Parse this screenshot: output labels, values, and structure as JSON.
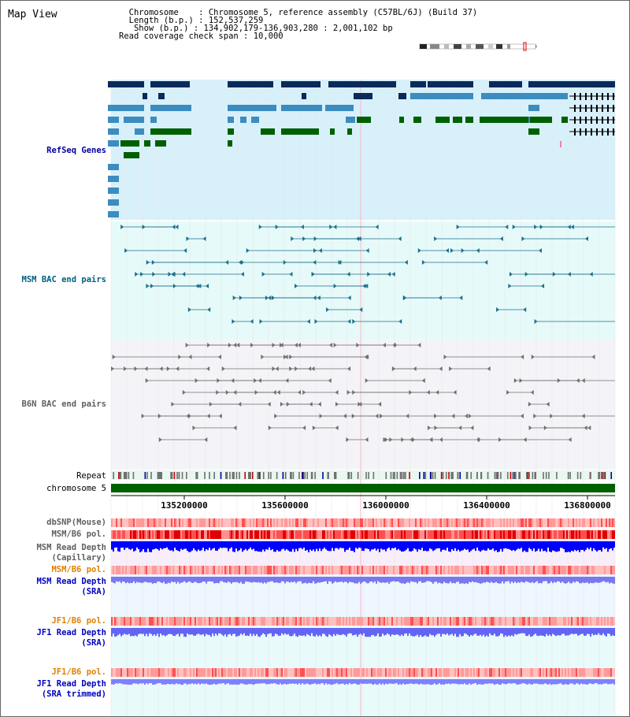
{
  "title": "Map View",
  "header": {
    "chromosome_label": "Chromosome",
    "chromosome_value": "Chromosome 5, reference assembly (C57BL/6J) (Build 37)",
    "length_label": "Length (b.p.)",
    "length_value": "152,537,259",
    "show_label": "Show (b.p.)",
    "show_value": "134,902,179-136,903,280 : 2,001,102 bp",
    "coverage_label": "Read coverage check span",
    "coverage_value": "10,000"
  },
  "tracks": {
    "refseq": "RefSeq Genes",
    "msm_bac": "MSM BAC end pairs",
    "b6n_bac": "B6N BAC end pairs",
    "repeat": "Repeat",
    "chromosome": "chromosome 5",
    "dbsnp": "dbSNP(Mouse)",
    "msm_b6_pol_1": "MSM/B6 pol.",
    "msm_depth_cap_1": "MSM Read Depth",
    "msm_depth_cap_2": "(Capillary)",
    "msm_b6_pol_2": "MSM/B6 pol.",
    "msm_depth_sra_1": "MSM Read Depth",
    "msm_depth_sra_2": "(SRA)",
    "jf1_b6_pol_1": "JF1/B6 pol.",
    "jf1_depth_sra_1": "JF1 Read Depth",
    "jf1_depth_sra_2": "(SRA)",
    "jf1_b6_pol_2": "JF1/B6 pol.",
    "jf1_depth_trim_1": "JF1 Read Depth",
    "jf1_depth_trim_2": "(SRA trimmed)"
  },
  "axis": {
    "ticks": [
      "135200000",
      "135600000",
      "136000000",
      "136400000",
      "136800000"
    ]
  },
  "colors": {
    "refseq_label": "#0000a0",
    "msm_label": "#006080",
    "b6n_label": "#606060",
    "pol_label_orange": "#e08000",
    "depth_label_blue": "#0000c0",
    "refseq_bg": "#d8f0fa",
    "msm_bg": "#e6fafa",
    "b6n_bg": "#f4f4f8",
    "gene_dark": "#0a2a5a",
    "gene_mid": "#3c8cc0",
    "gene_green": "#006000",
    "chromosome_bar": "#006000"
  }
}
